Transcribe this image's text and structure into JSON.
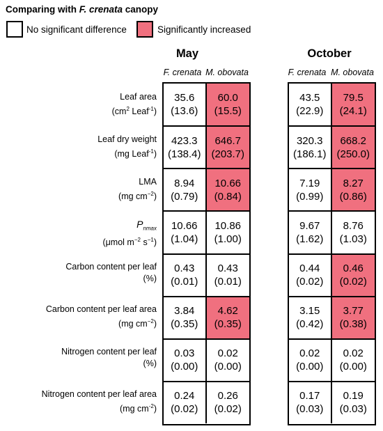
{
  "legend": {
    "title_prefix": "Comparing with ",
    "title_species": "F. crenata",
    "title_suffix": " canopy",
    "items": [
      {
        "label": "No significant difference",
        "color": "#ffffff"
      },
      {
        "label": "Significantly increased",
        "color": "#f0707f"
      }
    ]
  },
  "seasons": [
    {
      "title": "May",
      "species": [
        "F. crenata",
        "M. obovata"
      ]
    },
    {
      "title": "October",
      "species": [
        "F. crenata",
        "M. obovata"
      ]
    }
  ],
  "rows": [
    {
      "label1": "Leaf area",
      "label2_parts": [
        "(cm",
        "2",
        " Leaf",
        "-1",
        ")"
      ],
      "label2_style": [
        "",
        "sup",
        "",
        "sup",
        ""
      ],
      "values": [
        [
          "35.6",
          "(13.6)",
          false
        ],
        [
          "60.0",
          "(15.5)",
          true
        ],
        [
          "43.5",
          "(22.9)",
          false
        ],
        [
          "79.5",
          "(24.1)",
          true
        ]
      ]
    },
    {
      "label1": "Leaf dry weight",
      "label2_parts": [
        "(mg Leaf",
        "-1",
        ")"
      ],
      "label2_style": [
        "",
        "sup",
        ""
      ],
      "values": [
        [
          "423.3",
          "(138.4)",
          false
        ],
        [
          "646.7",
          "(203.7)",
          true
        ],
        [
          "320.3",
          "(186.1)",
          false
        ],
        [
          "668.2",
          "(250.0)",
          true
        ]
      ]
    },
    {
      "label1": "LMA",
      "label2_parts": [
        "(mg cm",
        "−2",
        ")"
      ],
      "label2_style": [
        "",
        "sup",
        ""
      ],
      "values": [
        [
          "8.94",
          "(0.79)",
          false
        ],
        [
          "10.66",
          "(0.84)",
          true
        ],
        [
          "7.19",
          "(0.99)",
          false
        ],
        [
          "8.27",
          "(0.86)",
          true
        ]
      ]
    },
    {
      "label1_parts": [
        "P",
        "nmax"
      ],
      "label1_style": [
        "italic",
        "sub-italic"
      ],
      "label2_parts": [
        "(μmol m",
        "−2",
        " s",
        "−1",
        ")"
      ],
      "label2_style": [
        "",
        "sup",
        "",
        "sup",
        ""
      ],
      "values": [
        [
          "10.66",
          "(1.04)",
          false
        ],
        [
          "10.86",
          "(1.00)",
          false
        ],
        [
          "9.67",
          "(1.62)",
          false
        ],
        [
          "8.76",
          "(1.03)",
          false
        ]
      ]
    },
    {
      "label1": "Carbon content per leaf",
      "label2_parts": [
        "(%)"
      ],
      "label2_style": [
        ""
      ],
      "values": [
        [
          "0.43",
          "(0.01)",
          false
        ],
        [
          "0.43",
          "(0.01)",
          false
        ],
        [
          "0.44",
          "(0.02)",
          false
        ],
        [
          "0.46",
          "(0.02)",
          true
        ]
      ]
    },
    {
      "label1": "Carbon content per leaf area",
      "label2_parts": [
        "(mg cm",
        "−2",
        ")"
      ],
      "label2_style": [
        "",
        "sup",
        ""
      ],
      "values": [
        [
          "3.84",
          "(0.35)",
          false
        ],
        [
          "4.62",
          "(0.35)",
          true
        ],
        [
          "3.15",
          "(0.42)",
          false
        ],
        [
          "3.77",
          "(0.38)",
          true
        ]
      ]
    },
    {
      "label1": "Nitrogen content per leaf",
      "label2_parts": [
        "(%)"
      ],
      "label2_style": [
        ""
      ],
      "values": [
        [
          "0.03",
          "(0.00)",
          false
        ],
        [
          "0.02",
          "(0.00)",
          false
        ],
        [
          "0.02",
          "(0.00)",
          false
        ],
        [
          "0.02",
          "(0.00)",
          false
        ]
      ]
    },
    {
      "label1": "Nitrogen content per leaf area",
      "label2_parts": [
        "(mg cm",
        "-2",
        ")"
      ],
      "label2_style": [
        "",
        "sup",
        ""
      ],
      "values": [
        [
          "0.24",
          "(0.02)",
          false
        ],
        [
          "0.26",
          "(0.02)",
          false
        ],
        [
          "0.17",
          "(0.03)",
          false
        ],
        [
          "0.19",
          "(0.03)",
          false
        ]
      ]
    }
  ],
  "colors": {
    "significant": "#f0707f",
    "border": "#000000"
  }
}
